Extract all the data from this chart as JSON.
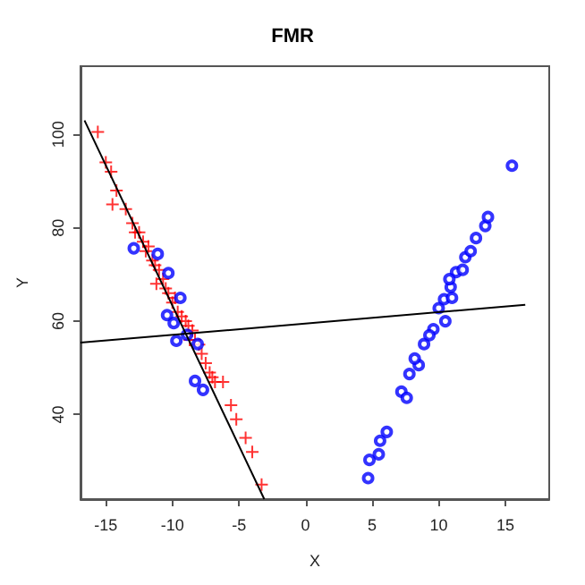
{
  "chart_data": {
    "type": "scatter",
    "title": "FMR",
    "xlabel": "X",
    "ylabel": "Y",
    "xlim": [
      -16.9,
      18.3
    ],
    "ylim": [
      21.9,
      114.6
    ],
    "xticks": [
      -15,
      -10,
      -5,
      0,
      5,
      10,
      15
    ],
    "yticks": [
      40,
      60,
      80,
      100
    ],
    "grid": false,
    "series": [
      {
        "marker": "cross",
        "color": "#ff0000",
        "x": [
          -15.6,
          -15,
          -14.6,
          -14.2,
          -14.5,
          -13.5,
          -13,
          -12.8,
          -12.5,
          -12.2,
          -12,
          -11.8,
          -11.5,
          -11.3,
          -11,
          -11.2,
          -10.7,
          -10.5,
          -10.3,
          -10,
          -9.8,
          -9.6,
          -9.3,
          -9,
          -8.8,
          -8.5,
          -8.7,
          -8.3,
          -8,
          -7.8,
          -7.5,
          -7.2,
          -7,
          -6.8,
          -6.2,
          -5.6,
          -5.2,
          -4.5,
          -4,
          -3.3
        ],
        "values": [
          100.5,
          94,
          92,
          88,
          85,
          84,
          81,
          79,
          79,
          77,
          75,
          76,
          73,
          72,
          71,
          68,
          69,
          67,
          66,
          64,
          65,
          62,
          61,
          60,
          59,
          58,
          56,
          56,
          55,
          53,
          51,
          49,
          48,
          47,
          47,
          42,
          39,
          35,
          32,
          25
        ]
      },
      {
        "marker": "circle",
        "color": "#0000ff",
        "x": [
          -12.9,
          -11.1,
          -10.3,
          -9.4,
          -10.4,
          -9.9,
          -9.7,
          -8.1,
          -8.3,
          -7.7,
          -8.9,
          4.7,
          4.8,
          5.5,
          5.6,
          6.1,
          7.2,
          7.6,
          7.8,
          8.5,
          8.9,
          9.6,
          10,
          10.4,
          10.9,
          11.3,
          12,
          12.8,
          13.5,
          13.7,
          15.5,
          11,
          10.5,
          9.3,
          8.2,
          10.8,
          11.8,
          12.4
        ],
        "values": [
          75.6,
          74.4,
          70.3,
          65,
          61.3,
          59.6,
          55.8,
          55.1,
          47.2,
          45.3,
          57.1,
          26.4,
          30.3,
          31.5,
          34.4,
          36.3,
          44.9,
          43.6,
          48.7,
          50.6,
          55.1,
          58.3,
          62.8,
          64.7,
          67.3,
          70.5,
          73.7,
          77.8,
          80.4,
          82.3,
          93.3,
          65,
          60,
          57,
          52,
          69,
          71,
          75
        ]
      },
      {
        "type": "line",
        "marker": "none",
        "color": "#000000",
        "x": [
          -16.6,
          -3.1
        ],
        "values": [
          103,
          21.9
        ]
      },
      {
        "type": "line",
        "marker": "none",
        "color": "#000000",
        "x": [
          -16.9,
          16.5
        ],
        "values": [
          55.4,
          63.5
        ]
      }
    ]
  }
}
